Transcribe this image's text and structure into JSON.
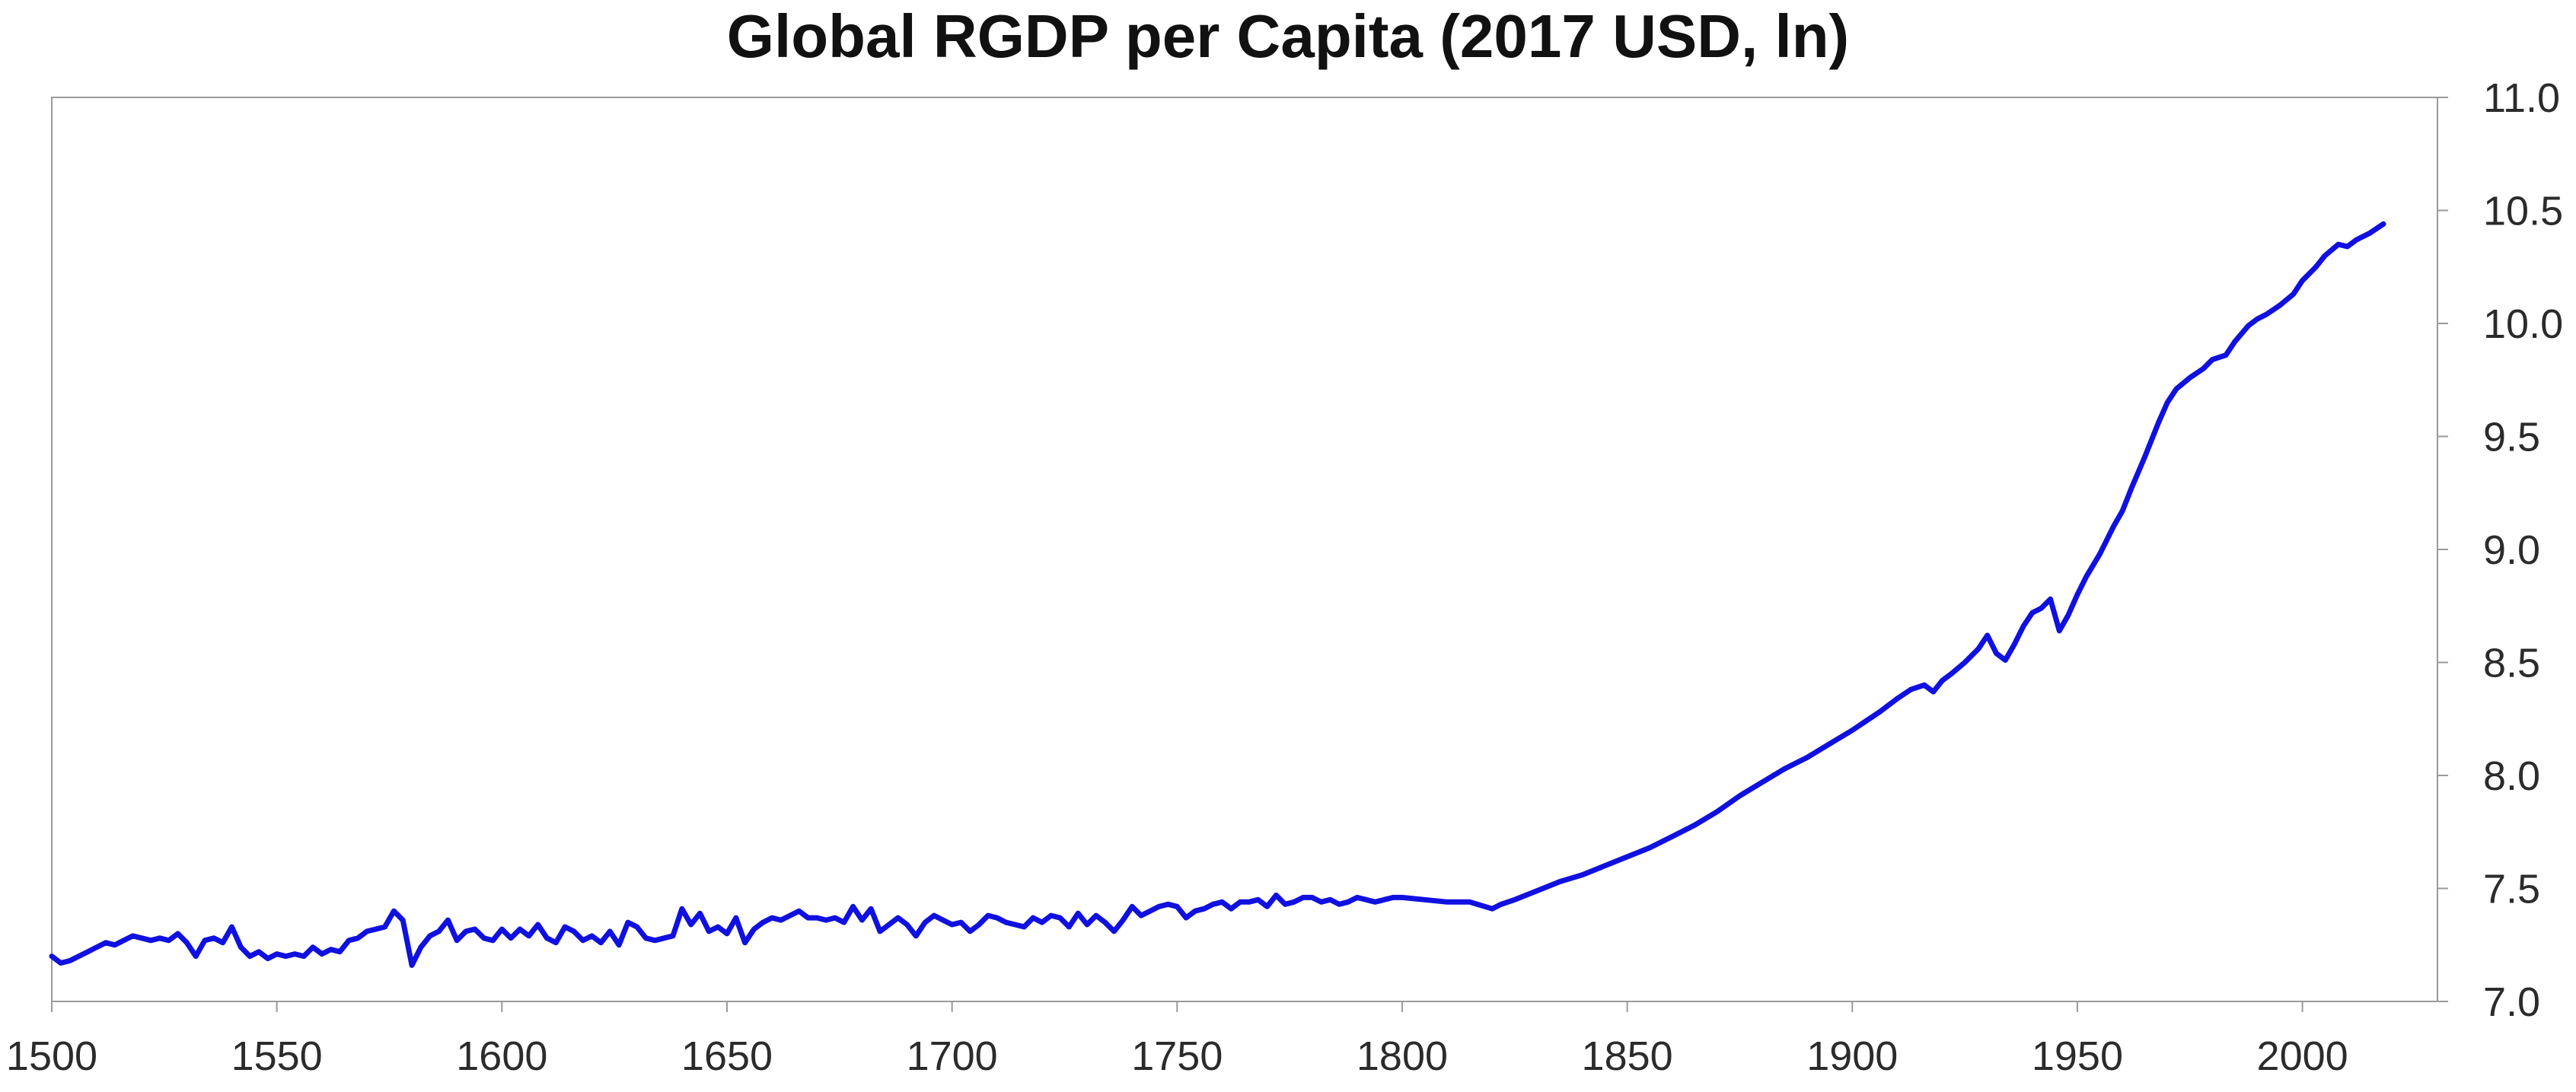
{
  "chart_data": {
    "type": "line",
    "title": "Global RGDP per Capita (2017 USD, ln)",
    "xlabel": "",
    "ylabel": "",
    "xlim": [
      1500,
      2030
    ],
    "ylim": [
      7.0,
      11.0
    ],
    "x_ticks": [
      "1500",
      "1550",
      "1600",
      "1650",
      "1700",
      "1750",
      "1800",
      "1850",
      "1900",
      "1950",
      "2000"
    ],
    "y_ticks": [
      "7.0",
      "7.5",
      "8.0",
      "8.5",
      "9.0",
      "9.5",
      "10.0",
      "10.5",
      "11.0"
    ],
    "y_axis_side": "right",
    "grid": false,
    "legend": "none",
    "series": [
      {
        "color": "#1010e0",
        "x": [
          1500,
          1502,
          1504,
          1506,
          1508,
          1510,
          1512,
          1514,
          1516,
          1518,
          1520,
          1522,
          1524,
          1526,
          1528,
          1530,
          1532,
          1534,
          1536,
          1538,
          1540,
          1542,
          1544,
          1546,
          1548,
          1550,
          1552,
          1554,
          1556,
          1558,
          1560,
          1562,
          1564,
          1566,
          1568,
          1570,
          1572,
          1574,
          1576,
          1578,
          1580,
          1582,
          1584,
          1586,
          1588,
          1590,
          1592,
          1594,
          1596,
          1598,
          1600,
          1602,
          1604,
          1606,
          1608,
          1610,
          1612,
          1614,
          1616,
          1618,
          1620,
          1622,
          1624,
          1626,
          1628,
          1630,
          1632,
          1634,
          1636,
          1638,
          1640,
          1642,
          1644,
          1646,
          1648,
          1650,
          1652,
          1654,
          1656,
          1658,
          1660,
          1662,
          1664,
          1666,
          1668,
          1670,
          1672,
          1674,
          1676,
          1678,
          1680,
          1682,
          1684,
          1686,
          1688,
          1690,
          1692,
          1694,
          1696,
          1698,
          1700,
          1702,
          1704,
          1706,
          1708,
          1710,
          1712,
          1714,
          1716,
          1718,
          1720,
          1722,
          1724,
          1726,
          1728,
          1730,
          1732,
          1734,
          1736,
          1738,
          1740,
          1742,
          1744,
          1746,
          1748,
          1750,
          1752,
          1754,
          1756,
          1758,
          1760,
          1762,
          1764,
          1766,
          1768,
          1770,
          1772,
          1774,
          1776,
          1778,
          1780,
          1782,
          1784,
          1786,
          1788,
          1790,
          1792,
          1794,
          1796,
          1798,
          1800,
          1805,
          1810,
          1815,
          1820,
          1822,
          1825,
          1830,
          1835,
          1840,
          1845,
          1850,
          1855,
          1860,
          1865,
          1870,
          1875,
          1880,
          1885,
          1890,
          1895,
          1900,
          1903,
          1906,
          1910,
          1913,
          1916,
          1918,
          1920,
          1922,
          1925,
          1928,
          1930,
          1932,
          1934,
          1936,
          1938,
          1940,
          1942,
          1944,
          1946,
          1948,
          1950,
          1952,
          1955,
          1958,
          1960,
          1962,
          1965,
          1968,
          1970,
          1972,
          1975,
          1978,
          1980,
          1983,
          1985,
          1988,
          1990,
          1992,
          1995,
          1998,
          2000,
          2003,
          2005,
          2008,
          2010,
          2012,
          2015,
          2018
        ],
        "y": [
          7.2,
          7.17,
          7.18,
          7.2,
          7.22,
          7.24,
          7.26,
          7.25,
          7.27,
          7.29,
          7.28,
          7.27,
          7.28,
          7.27,
          7.3,
          7.26,
          7.2,
          7.27,
          7.28,
          7.26,
          7.33,
          7.24,
          7.2,
          7.22,
          7.19,
          7.21,
          7.2,
          7.21,
          7.2,
          7.24,
          7.21,
          7.23,
          7.22,
          7.27,
          7.28,
          7.31,
          7.32,
          7.33,
          7.4,
          7.36,
          7.16,
          7.24,
          7.29,
          7.31,
          7.36,
          7.27,
          7.31,
          7.32,
          7.28,
          7.27,
          7.32,
          7.28,
          7.32,
          7.29,
          7.34,
          7.28,
          7.26,
          7.33,
          7.31,
          7.27,
          7.29,
          7.26,
          7.31,
          7.25,
          7.35,
          7.33,
          7.28,
          7.27,
          7.28,
          7.29,
          7.41,
          7.34,
          7.39,
          7.31,
          7.33,
          7.3,
          7.37,
          7.26,
          7.32,
          7.35,
          7.37,
          7.36,
          7.38,
          7.4,
          7.37,
          7.37,
          7.36,
          7.37,
          7.35,
          7.42,
          7.36,
          7.41,
          7.31,
          7.34,
          7.37,
          7.34,
          7.29,
          7.35,
          7.38,
          7.36,
          7.34,
          7.35,
          7.31,
          7.34,
          7.38,
          7.37,
          7.35,
          7.34,
          7.33,
          7.37,
          7.35,
          7.38,
          7.37,
          7.33,
          7.39,
          7.34,
          7.38,
          7.35,
          7.31,
          7.36,
          7.42,
          7.38,
          7.4,
          7.42,
          7.43,
          7.42,
          7.37,
          7.4,
          7.41,
          7.43,
          7.44,
          7.41,
          7.44,
          7.44,
          7.45,
          7.42,
          7.47,
          7.43,
          7.44,
          7.46,
          7.46,
          7.44,
          7.45,
          7.43,
          7.44,
          7.46,
          7.45,
          7.44,
          7.45,
          7.46,
          7.46,
          7.45,
          7.44,
          7.44,
          7.41,
          7.43,
          7.45,
          7.49,
          7.53,
          7.56,
          7.6,
          7.64,
          7.68,
          7.73,
          7.78,
          7.84,
          7.91,
          7.97,
          8.03,
          8.08,
          8.14,
          8.2,
          8.24,
          8.28,
          8.34,
          8.38,
          8.4,
          8.37,
          8.42,
          8.45,
          8.5,
          8.56,
          8.62,
          8.54,
          8.51,
          8.58,
          8.66,
          8.72,
          8.74,
          8.78,
          8.64,
          8.71,
          8.8,
          8.88,
          8.98,
          9.1,
          9.17,
          9.27,
          9.41,
          9.56,
          9.65,
          9.71,
          9.76,
          9.8,
          9.84,
          9.86,
          9.92,
          9.99,
          10.02,
          10.04,
          10.08,
          10.13,
          10.19,
          10.25,
          10.3,
          10.35,
          10.34,
          10.37,
          10.4,
          10.44
        ]
      }
    ]
  }
}
